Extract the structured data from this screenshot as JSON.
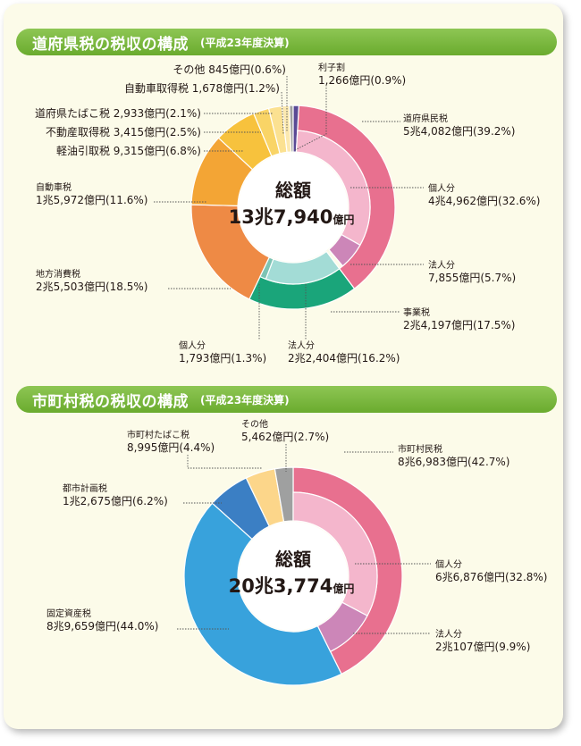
{
  "charts": [
    {
      "title": "道府県税の税収の構成",
      "subtitle": "(平成23年度決算)",
      "total_label": "総額",
      "total_value_main": "13兆7,940",
      "total_value_unit": "億円",
      "chart_data": {
        "type": "pie",
        "title": "道府県税の税収の構成",
        "subtitle": "(平成23年度決算)",
        "total": "13兆7,940億円",
        "outer": [
          {
            "name": "道府県民税",
            "value": "5兆4,082億円",
            "percent": 39.2,
            "color": "#e8708f"
          },
          {
            "name": "事業税",
            "value": "2兆4,197億円",
            "percent": 17.5,
            "color": "#1aa57a"
          },
          {
            "name": "地方消費税",
            "value": "2兆5,503億円",
            "percent": 18.5,
            "color": "#ee8a45"
          },
          {
            "name": "自動車税",
            "value": "1兆5,972億円",
            "percent": 11.6,
            "color": "#f3a535"
          },
          {
            "name": "軽油引取税",
            "value": "9,315億円",
            "percent": 6.8,
            "color": "#f7c23d"
          },
          {
            "name": "不動産取得税",
            "value": "3,415億円",
            "percent": 2.5,
            "color": "#f9d466"
          },
          {
            "name": "道府県たばこ税",
            "value": "2,933億円",
            "percent": 2.1,
            "color": "#fbe191"
          },
          {
            "name": "自動車取得税",
            "value": "1,678億円",
            "percent": 1.2,
            "color": "#fce9b0"
          },
          {
            "name": "その他",
            "value": "845億円",
            "percent": 0.6,
            "color": "#9fa0a0"
          },
          {
            "name": "利子割",
            "value": "1,266億円",
            "percent": 0.9,
            "color": "#5a4a95"
          }
        ],
        "inner": [
          {
            "name": "個人分",
            "parent": "道府県民税",
            "value": "4兆4,962億円",
            "percent": 32.6,
            "color": "#f4b6cc"
          },
          {
            "name": "法人分",
            "parent": "道府県民税",
            "value": "7,855億円",
            "percent": 5.7,
            "color": "#cc86b8"
          },
          {
            "name": "法人分",
            "parent": "事業税",
            "value": "2兆2,404億円",
            "percent": 16.2,
            "color": "#a3dcd6"
          },
          {
            "name": "個人分",
            "parent": "事業税",
            "value": "1,793億円",
            "percent": 1.3,
            "color": "#7dc4b4"
          }
        ]
      },
      "labels": [
        {
          "key": "sonota",
          "lines": [
            "その他 845億円(0.6%)"
          ]
        },
        {
          "key": "rishi",
          "lines": [
            "利子割",
            "1,266億円(0.9%)"
          ]
        },
        {
          "key": "jidoshashutoku",
          "lines": [
            "自動車取得税 1,678億円(1.2%)"
          ]
        },
        {
          "key": "tabako",
          "lines": [
            "道府県たばこ税 2,933億円(2.1%)"
          ]
        },
        {
          "key": "fudosan",
          "lines": [
            "不動産取得税 3,415億円(2.5%)"
          ]
        },
        {
          "key": "keiyu",
          "lines": [
            "軽油引取税 9,315億円(6.8%)"
          ]
        },
        {
          "key": "jidoshazei",
          "lines": [
            "自動車税",
            "1兆5,972億円(11.6%)"
          ]
        },
        {
          "key": "chihoshohi",
          "lines": [
            "地方消費税",
            "2兆5,503億円(18.5%)"
          ]
        },
        {
          "key": "kenminzei",
          "lines": [
            "道府県民税",
            "5兆4,082億円(39.2%)"
          ]
        },
        {
          "key": "kojin",
          "lines": [
            "個人分",
            "4兆4,962億円(32.6%)"
          ]
        },
        {
          "key": "hojin",
          "lines": [
            "法人分",
            "7,855億円(5.7%)"
          ]
        },
        {
          "key": "jigyozei",
          "lines": [
            "事業税",
            "2兆4,197億円(17.5%)"
          ]
        },
        {
          "key": "jigyo_kojin",
          "lines": [
            "個人分",
            "1,793億円(1.3%)"
          ]
        },
        {
          "key": "jigyo_hojin",
          "lines": [
            "法人分",
            "2兆2,404億円(16.2%)"
          ]
        }
      ]
    },
    {
      "title": "市町村税の税収の構成",
      "subtitle": "(平成23年度決算)",
      "total_label": "総額",
      "total_value_main": "20兆3,774",
      "total_value_unit": "億円",
      "chart_data": {
        "type": "pie",
        "title": "市町村税の税収の構成",
        "subtitle": "(平成23年度決算)",
        "total": "20兆3,774億円",
        "outer": [
          {
            "name": "市町村民税",
            "value": "8兆6,983億円",
            "percent": 42.7,
            "color": "#e8708f"
          },
          {
            "name": "固定資産税",
            "value": "8兆9,659億円",
            "percent": 44.0,
            "color": "#38a2dc"
          },
          {
            "name": "都市計画税",
            "value": "1兆2,675億円",
            "percent": 6.2,
            "color": "#3b7fc4"
          },
          {
            "name": "市町村たばこ税",
            "value": "8,995億円",
            "percent": 4.4,
            "color": "#fcd68a"
          },
          {
            "name": "その他",
            "value": "5,462億円",
            "percent": 2.7,
            "color": "#9fa0a0"
          }
        ],
        "inner": [
          {
            "name": "個人分",
            "parent": "市町村民税",
            "value": "6兆6,876億円",
            "percent": 32.8,
            "color": "#f4b6cc"
          },
          {
            "name": "法人分",
            "parent": "市町村民税",
            "value": "2兆107億円",
            "percent": 9.9,
            "color": "#cc86b8"
          }
        ]
      },
      "labels": [
        {
          "key": "sonota",
          "lines": [
            "その他",
            "5,462億円(2.7%)"
          ]
        },
        {
          "key": "tabako",
          "lines": [
            "市町村たばこ税",
            "8,995億円(4.4%)"
          ]
        },
        {
          "key": "toshikeikaku",
          "lines": [
            "都市計画税",
            "1兆2,675億円(6.2%)"
          ]
        },
        {
          "key": "kotei",
          "lines": [
            "固定資産税",
            "8兆9,659億円(44.0%)"
          ]
        },
        {
          "key": "shichoson",
          "lines": [
            "市町村民税",
            "8兆6,983億円(42.7%)"
          ]
        },
        {
          "key": "kojin",
          "lines": [
            "個人分",
            "6兆6,876億円(32.8%)"
          ]
        },
        {
          "key": "hojin",
          "lines": [
            "法人分",
            "2兆107億円(9.9%)"
          ]
        }
      ]
    }
  ]
}
